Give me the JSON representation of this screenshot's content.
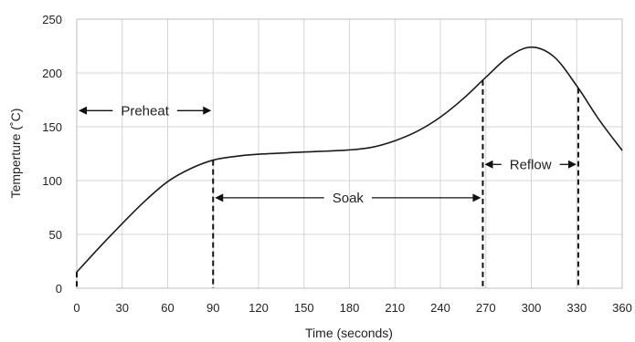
{
  "chart_data": {
    "type": "line",
    "xlabel": "Time (seconds)",
    "ylabel": "Temperture (˚C)",
    "xlim": [
      0,
      360
    ],
    "ylim": [
      0,
      250
    ],
    "x_ticks": [
      "0",
      "30",
      "60",
      "90",
      "120",
      "150",
      "180",
      "210",
      "240",
      "270",
      "300",
      "330",
      "360"
    ],
    "y_ticks": [
      "0",
      "50",
      "100",
      "150",
      "200",
      "250"
    ],
    "grid": true,
    "series": [
      {
        "x": [
          0,
          15,
          30,
          45,
          60,
          75,
          90,
          105,
          120,
          150,
          180,
          195,
          210,
          225,
          240,
          255,
          270,
          285,
          300,
          315,
          330,
          345,
          360
        ],
        "y": [
          15,
          38,
          60,
          81,
          99,
          111,
          119,
          122.5,
          124.5,
          126.5,
          128.5,
          131,
          137,
          146,
          159,
          176,
          196,
          215,
          224,
          215,
          188,
          156,
          128
        ]
      }
    ],
    "zones": [
      {
        "label": "Preheat",
        "x_start": 0,
        "x_end": 90,
        "arrow_y": 165
      },
      {
        "label": "Soak",
        "x_start": 90,
        "x_end": 268,
        "arrow_y": 84
      },
      {
        "label": "Reflow",
        "x_start": 268,
        "x_end": 331,
        "arrow_y": 115
      }
    ]
  }
}
